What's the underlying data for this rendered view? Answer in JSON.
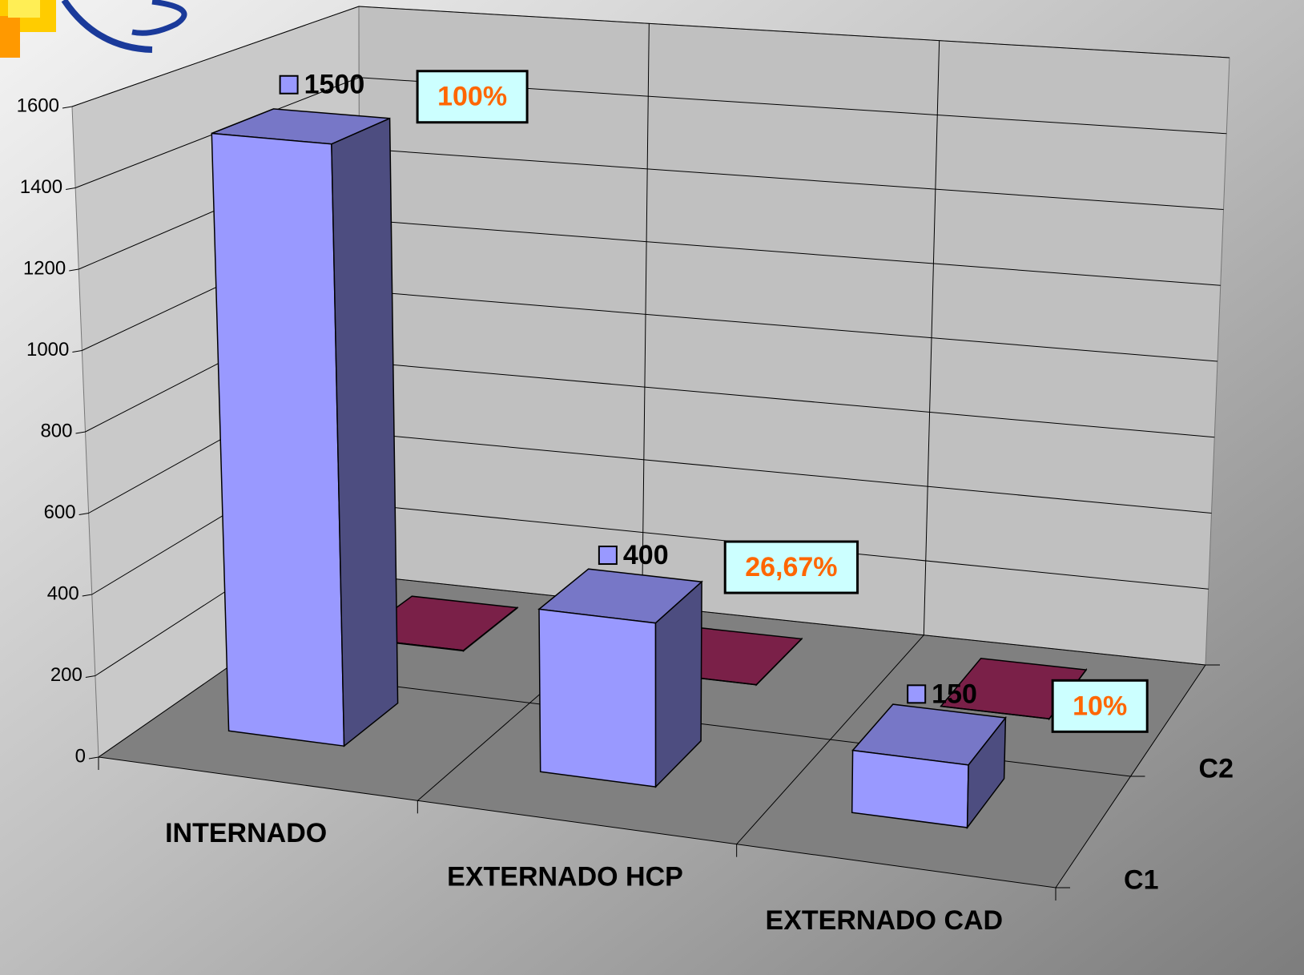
{
  "chart_data": {
    "type": "bar3d",
    "categories": [
      "INTERNADO",
      "EXTERNADO HCP",
      "EXTERNADO CAD"
    ],
    "series": [
      {
        "name": "C1",
        "color": "#9999ff",
        "values": [
          1500,
          400,
          150
        ]
      },
      {
        "name": "C2",
        "color": "#7a2048",
        "values": [
          1,
          0.2667,
          0.1
        ],
        "value_labels": [
          "100%",
          "26,67%",
          "10%"
        ]
      }
    ],
    "ylim": [
      0,
      1600
    ],
    "yticks": [
      0,
      200,
      400,
      600,
      800,
      1000,
      1200,
      1400,
      1600
    ],
    "grid": true
  }
}
